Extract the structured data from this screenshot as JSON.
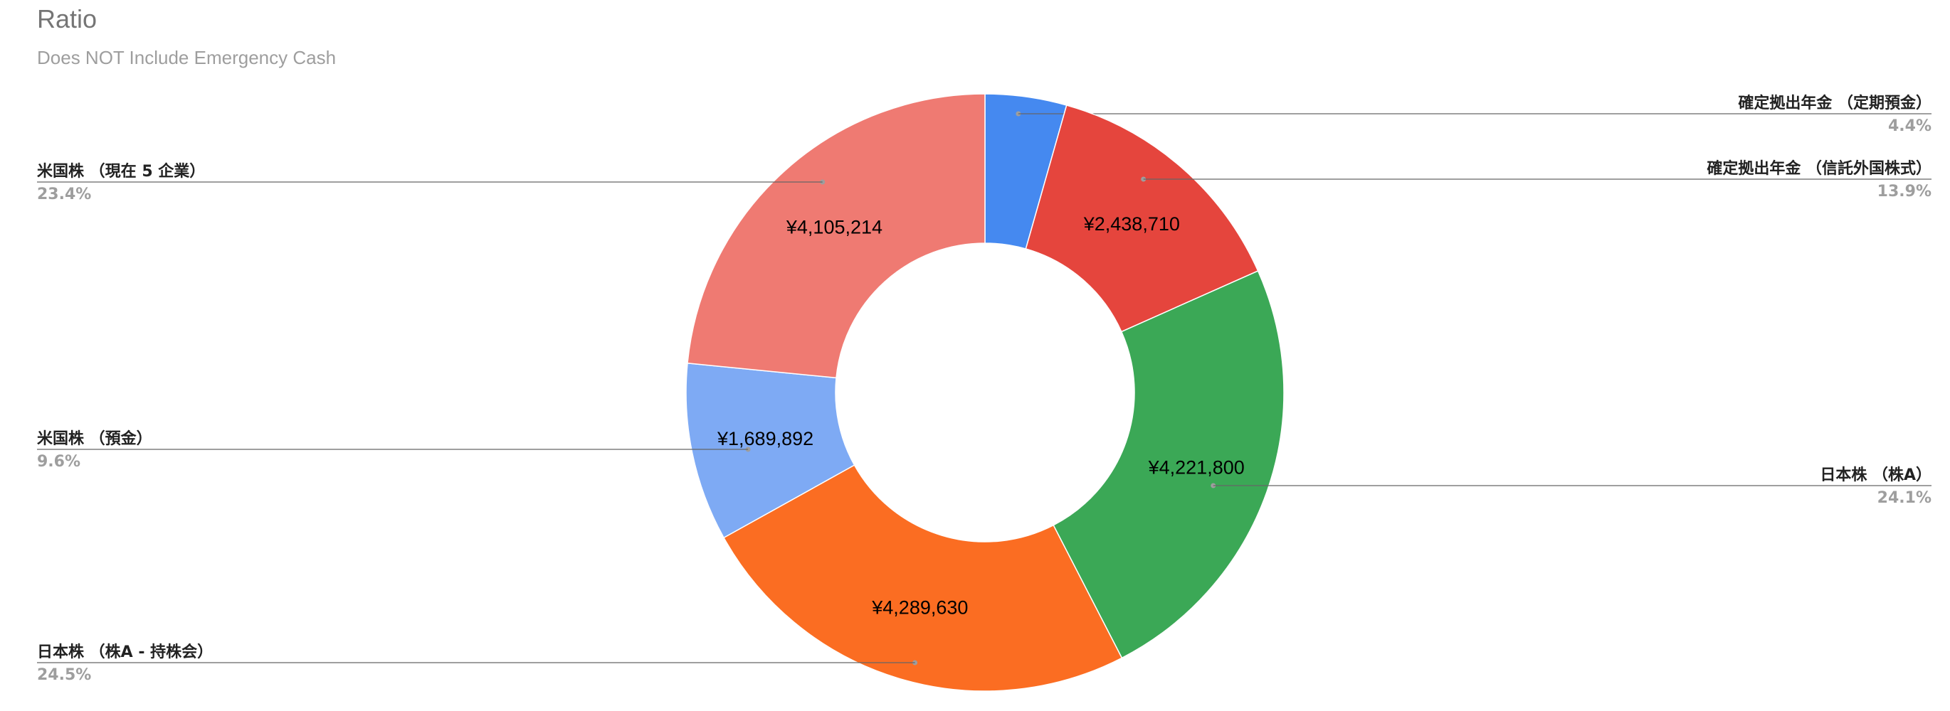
{
  "chart_data": {
    "type": "pie",
    "donut": true,
    "title": "Ratio",
    "subtitle": "Does NOT Include Emergency Cash",
    "legend_placement": "callout-labels",
    "slices": [
      {
        "label": "確定拠出年金 （定期預金）",
        "value": 771500,
        "display_value": "",
        "percent": "4.4%",
        "color": "#4589f0",
        "side": "right"
      },
      {
        "label": "確定拠出年金 （信託外国株式）",
        "value": 2438710,
        "display_value": "¥2,438,710",
        "percent": "13.9%",
        "color": "#e5453d",
        "side": "right"
      },
      {
        "label": "日本株 （株A）",
        "value": 4221800,
        "display_value": "¥4,221,800",
        "percent": "24.1%",
        "color": "#3ba856",
        "side": "right"
      },
      {
        "label": "日本株 （株A - 持株会）",
        "value": 4289630,
        "display_value": "¥4,289,630",
        "percent": "24.5%",
        "color": "#fb6d22",
        "side": "left"
      },
      {
        "label": "米国株 （預金）",
        "value": 1689892,
        "display_value": "¥1,689,892",
        "percent": "9.6%",
        "color": "#7eaaf4",
        "side": "left"
      },
      {
        "label": "米国株 （現在 5 企業）",
        "value": 4105214,
        "display_value": "¥4,105,214",
        "percent": "23.4%",
        "color": "#ef7a72",
        "side": "left"
      }
    ]
  }
}
